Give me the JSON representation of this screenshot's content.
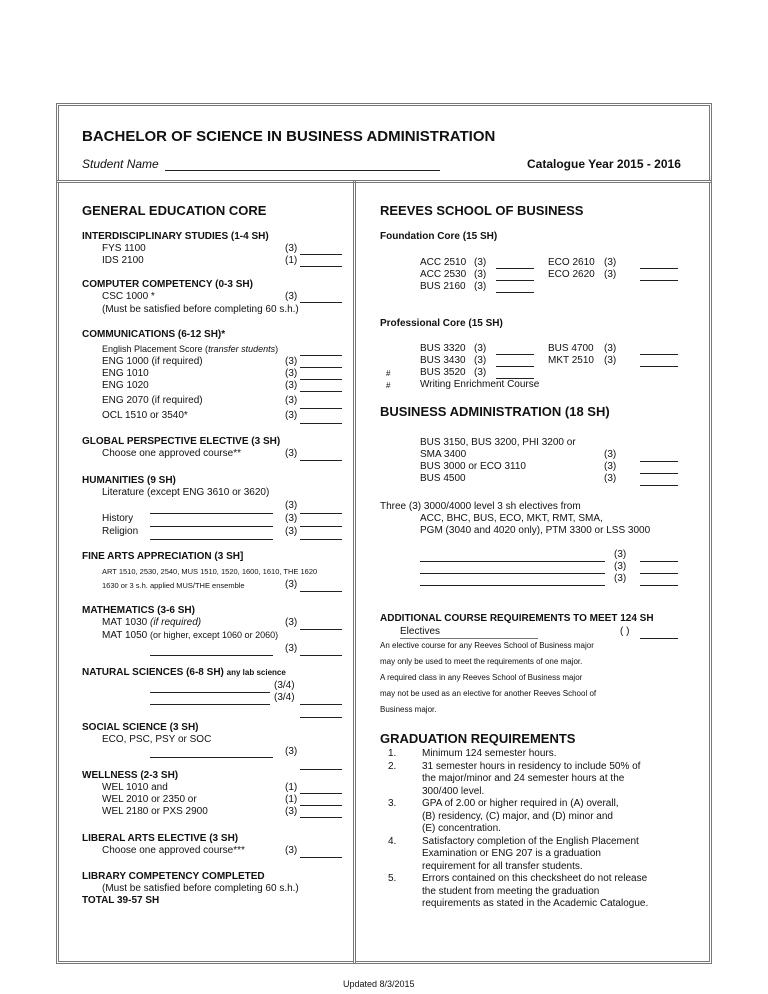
{
  "header": {
    "title": "BACHELOR OF SCIENCE IN BUSINESS ADMINISTRATION",
    "student_label": "Student Name",
    "catalogue": "Catalogue Year 2015 - 2016"
  },
  "gen": {
    "title": "GENERAL EDUCATION CORE",
    "inter": {
      "h": "INTERDISCIPLINARY STUDIES (1-4 SH)",
      "a": "FYS 1100",
      "a_sh": "(3)",
      "b": "IDS 2100",
      "b_sh": "(1)"
    },
    "comp": {
      "h": "COMPUTER COMPETENCY (0-3 SH)",
      "a": "CSC 1000 *",
      "a_sh": "(3)",
      "note": "(Must be satisfied before completing 60 s.h.)"
    },
    "comm": {
      "h": "COMMUNICATIONS (6-12 SH)*",
      "placement": "English Placement Score (",
      "placement_i": "transfer students",
      "placement_end": ")",
      "items": [
        [
          "ENG 1000 (if required)",
          "(3)"
        ],
        [
          "ENG 1010",
          "(3)"
        ],
        [
          "ENG 1020",
          "(3)"
        ],
        [
          "ENG 2070 (if required)",
          "(3)"
        ],
        [
          "OCL 1510 or 3540*",
          "(3)"
        ]
      ]
    },
    "global": {
      "h": "GLOBAL PERSPECTIVE ELECTIVE (3 SH)",
      "a": "Choose one approved course**",
      "a_sh": "(3)"
    },
    "hum": {
      "h": "HUMANITIES (9 SH)",
      "lit": "Literature (except ENG 3610 or 3620)",
      "sh": "(3)",
      "history": "History",
      "religion": "Religion"
    },
    "fine": {
      "h": "FINE ARTS APPRECIATION (3 SH]",
      "l1": "ART 1510, 2530, 2540, MUS 1510, 1520, 1600, 1610, THE 1620",
      "l2": "1630 or 3 s.h. applied MUS/THE ensemble",
      "sh": "(3)"
    },
    "math": {
      "h": "MATHEMATICS (3-6 SH)",
      "a": "MAT 1030 ",
      "a_i": "(if required)",
      "sh": "(3)",
      "b": "MAT 1050 ",
      "b_small": "(or higher, except 1060 or 2060)"
    },
    "nat": {
      "h": "NATURAL SCIENCES (6-8 SH) ",
      "h_small": "any lab science",
      "sh": "(3/4)"
    },
    "social": {
      "h": "SOCIAL SCIENCE (3 SH)",
      "a": "ECO, PSC, PSY or SOC",
      "sh": "(3)"
    },
    "well": {
      "h": "WELLNESS (2-3 SH)",
      "items": [
        [
          "WEL 1010 and",
          "(1)"
        ],
        [
          "WEL 2010 or 2350 or",
          "(1)"
        ],
        [
          "WEL 2180 or PXS 2900",
          "(3)"
        ]
      ]
    },
    "liberal": {
      "h": "LIBERAL ARTS ELECTIVE (3 SH)",
      "a": "Choose one approved course***",
      "sh": "(3)"
    },
    "library": {
      "h": "LIBRARY COMPETENCY COMPLETED",
      "note": "(Must be satisfied before completing 60 s.h.)",
      "total": "TOTAL  39-57 SH"
    }
  },
  "rsb": {
    "title": "REEVES SCHOOL OF BUSINESS",
    "found": {
      "h": "Foundation Core (15 SH)",
      "left": [
        "ACC 2510",
        "ACC 2530",
        "BUS 2160"
      ],
      "right": [
        "ECO 2610",
        "ECO 2620"
      ],
      "sh": "(3)"
    },
    "prof": {
      "h": "Professional Core (15 SH)",
      "left": [
        "BUS 3320",
        "BUS 3430",
        "BUS 3520"
      ],
      "right": [
        "BUS 4700",
        "MKT 2510"
      ],
      "writing": "Writing Enrichment Course",
      "mark": "#",
      "sh": "(3)"
    }
  },
  "ba": {
    "title": "BUSINESS ADMINISTRATION (18 SH)",
    "l1": "BUS 3150, BUS 3200, PHI 3200 or",
    "l2": "SMA 3400",
    "l3": "BUS 3000 or ECO 3110",
    "l4": "BUS 4500",
    "sh": "(3)",
    "el1": "Three (3) 3000/4000 level 3 sh electives from",
    "el2": "ACC, BHC, BUS, ECO, MKT, RMT, SMA,",
    "el3": "PGM (3040 and 4020 only), PTM 3300 or LSS 3000"
  },
  "add": {
    "h": "ADDITIONAL COURSE REQUIREMENTS TO MEET 124 SH",
    "electives": "Electives",
    "sh": "( )",
    "notes": [
      "An elective course for any Reeves School of Business major",
      "may only be used to meet the requirements of one major.",
      "A required class in any Reeves School of Business major",
      "may not be used as an elective for another Reeves School of",
      "Business major."
    ]
  },
  "grad": {
    "title": "GRADUATION REQUIREMENTS",
    "items": [
      {
        "n": "1.",
        "lines": [
          "Minimum 124 semester hours."
        ]
      },
      {
        "n": "2.",
        "lines": [
          "31 semester hours in residency to include 50% of",
          "the major/minor and 24 semester hours at the",
          "300/400 level."
        ]
      },
      {
        "n": "3.",
        "lines": [
          "GPA of 2.00 or higher required in (A) overall,",
          "(B) residency, (C) major, and (D) minor and",
          "(E) concentration."
        ]
      },
      {
        "n": "4.",
        "lines": [
          "Satisfactory completion of the English Placement",
          "Examination or ENG 207 is a graduation",
          "requirement for all transfer students."
        ]
      },
      {
        "n": "5.",
        "lines": [
          "Errors contained on this checksheet do not release",
          "the student from meeting the graduation",
          "requirements as stated in the Academic Catalogue."
        ]
      }
    ]
  },
  "footer": {
    "updated": "Updated 8/3/2015"
  }
}
